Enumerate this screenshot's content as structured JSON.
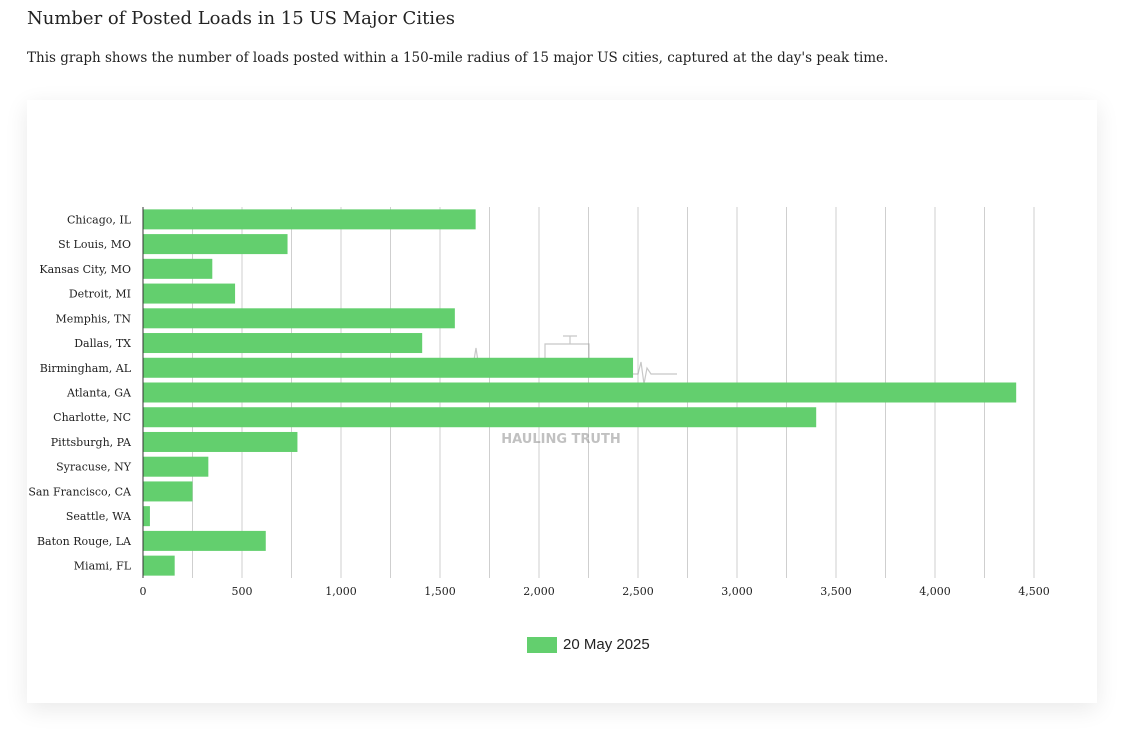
{
  "page": {
    "title": "Number of Posted Loads in 15 US Major Cities",
    "description": "This graph shows the number of loads posted within a 150-mile radius of 15 major US cities, captured at the day's peak time."
  },
  "watermark": {
    "text": "HAULING TRUTH"
  },
  "colors": {
    "bar": "#63cf6e",
    "grid": "#cfcfcf",
    "axis": "#333333"
  },
  "chart_data": {
    "type": "bar",
    "orientation": "horizontal",
    "categories": [
      "Chicago, IL",
      "St Louis, MO",
      "Kansas City, MO",
      "Detroit, MI",
      "Memphis, TN",
      "Dallas, TX",
      "Birmingham, AL",
      "Atlanta, GA",
      "Charlotte, NC",
      "Pittsburgh, PA",
      "Syracuse, NY",
      "San Francisco, CA",
      "Seattle, WA",
      "Baton Rouge, LA",
      "Miami, FL"
    ],
    "series": [
      {
        "name": "20 May 2025",
        "values": [
          1680,
          730,
          350,
          465,
          1575,
          1410,
          2475,
          4410,
          3400,
          780,
          330,
          250,
          35,
          620,
          160
        ]
      }
    ],
    "xlim": [
      0,
      4500
    ],
    "xticks": [
      0,
      500,
      1000,
      1500,
      2000,
      2500,
      3000,
      3500,
      4000,
      4500
    ],
    "xtick_labels": [
      "0",
      "500",
      "1,000",
      "1,500",
      "2,000",
      "2,500",
      "3,000",
      "3,500",
      "4,000",
      "4,500"
    ],
    "grid": "vertical",
    "legend_position": "bottom"
  }
}
